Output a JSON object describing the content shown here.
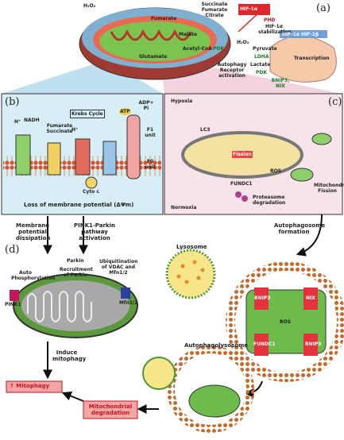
{
  "panel_a": {
    "label": "(a)",
    "h2o2": "H₂O₂",
    "tca_out": "Succinate Fumarate Citrate",
    "hif": "HIF-1α",
    "phd": "PHD",
    "stabilization": "HIF-1α stabilization",
    "pyruvate": "Pyruvate",
    "ldha": "LDHA",
    "lactate": "Lactate",
    "pdk": "PDK",
    "bnip3_nix": "BNIP3, NIX",
    "receptor": "Autophagy Receptor activation",
    "transcription": "Transcription",
    "hif_complex": "HIF-1α HIF-1β",
    "fumarate": "Fumarate",
    "malate": "Malate",
    "acetyl": "Acetyl-CoA",
    "glutamate": "Glutamate"
  },
  "panel_b": {
    "label": "(b)",
    "krebs": "Krebs Cycle",
    "fum_succ": "Fumarate Succinate",
    "nadh": "NADH",
    "atp": "ATP",
    "adp": "ADP+ Pi",
    "cyto": "Cyto c",
    "f0": "F0 unit",
    "f1": "F1 unit",
    "loss": "Loss of membrane potential (ΔΨm)",
    "h": "H⁺"
  },
  "panel_c": {
    "label": "(c)",
    "hypoxia": "Hypoxia",
    "normoxia": "Normoxia",
    "fission": "Fission",
    "fundc1": "FUNDC1",
    "mito_fission": "Mitochondrial Fission",
    "lc3": "LC3",
    "ros": "ROS",
    "proteasome": "Proteasome degradation"
  },
  "flow": {
    "membrane": "Membrane potential dissipation",
    "pink": "PINK1-Parkin pathway activation",
    "lysosome": "Lysosome",
    "autophagosome": "Autophagosome formation",
    "autophagolysosome": "Autophagolysosome",
    "induce": "Induce mitophagy",
    "mitophagy": "↑ Mitophagy",
    "degradation": "Mitochondrial degradation"
  },
  "panel_d": {
    "label": "(d)",
    "parkin": "Parkin",
    "recruit": "Recruitment of Parkin",
    "ubiq": "Ubiquitination of VDAC and Mfn1/2",
    "auto": "Auto Phosphorylation",
    "pink1": "PINK1",
    "mfn": "Mfn1/2"
  },
  "autophagosome": {
    "bnip3": "BNIP3",
    "nix": "NIX",
    "fundc1": "FUNDC1",
    "ros": "ROS"
  }
}
